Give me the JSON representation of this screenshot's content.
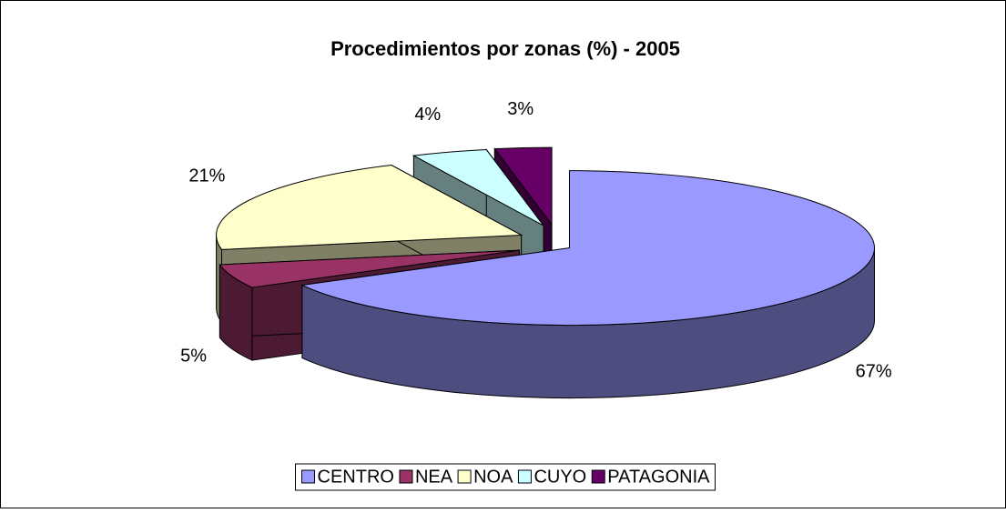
{
  "chart_data": {
    "type": "pie3d",
    "title": "Procedimientos por zonas (%) - 2005",
    "categories": [
      "CENTRO",
      "NEA",
      "NOA",
      "CUYO",
      "PATAGONIA"
    ],
    "values": [
      67,
      5,
      21,
      4,
      3
    ],
    "value_labels": [
      "67%",
      "5%",
      "21%",
      "4%",
      "3%"
    ],
    "colors": [
      "#9999ff",
      "#993366",
      "#ffffcc",
      "#ccffff",
      "#660066"
    ],
    "legend": "bottom"
  }
}
